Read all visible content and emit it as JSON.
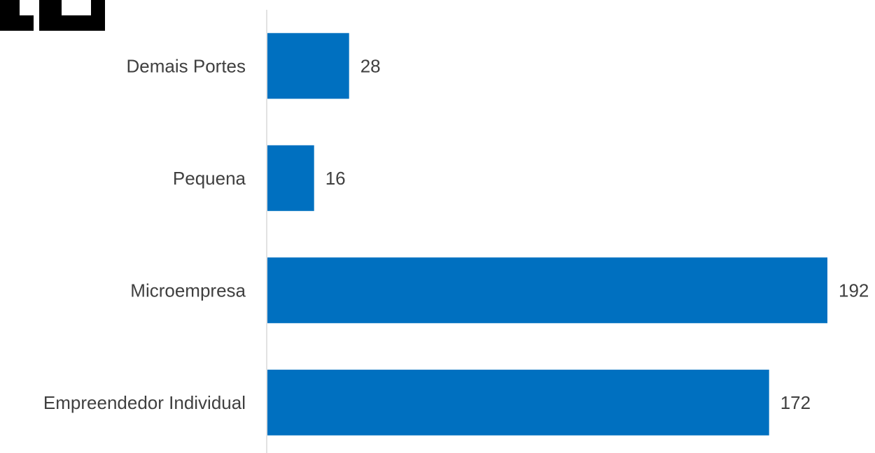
{
  "colors": {
    "bar": "#0070C0",
    "axis": "#D9D9D9",
    "text": "#404040",
    "logo": "#000000"
  },
  "logo": {
    "icon": "pixel-block-logo-icon"
  },
  "chart_data": {
    "type": "bar",
    "orientation": "horizontal",
    "categories": [
      "Demais Portes",
      "Pequena",
      "Microempresa",
      "Empreendedor Individual"
    ],
    "values": [
      28,
      16,
      192,
      172
    ],
    "title": "",
    "xlabel": "",
    "ylabel": "",
    "xlim": [
      0,
      192
    ],
    "grid": false,
    "legend": "none",
    "data_labels": true
  }
}
